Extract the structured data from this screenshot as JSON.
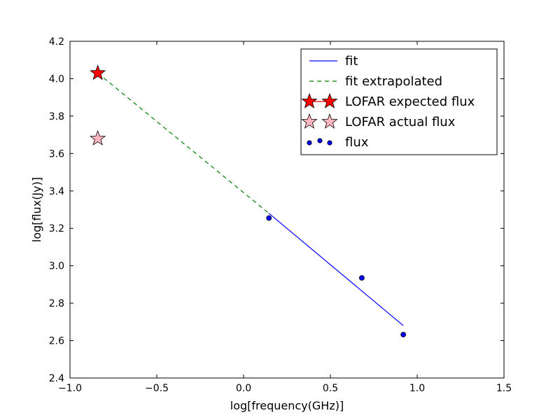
{
  "chart_data": {
    "type": "line",
    "xlabel": "log[frequency(GHz)]",
    "ylabel": "log[flux(Jy)]",
    "xlim": [
      -1.0,
      1.5
    ],
    "ylim": [
      2.4,
      4.2
    ],
    "xticks": [
      "−1.0",
      "−0.5",
      "0.0",
      "0.5",
      "1.0",
      "1.5"
    ],
    "yticks": [
      "2.4",
      "2.6",
      "2.8",
      "3.0",
      "3.2",
      "3.4",
      "3.6",
      "3.8",
      "4.0",
      "4.2"
    ],
    "grid": false,
    "legend_position": "top-right",
    "series": [
      {
        "name": "fit",
        "kind": "line",
        "style": "solid",
        "color": "#0000ff",
        "x": [
          0.146,
          0.92
        ],
        "y": [
          3.28,
          2.68
        ]
      },
      {
        "name": "fit extrapolated",
        "kind": "line",
        "style": "dashed",
        "color": "#008000",
        "x": [
          -0.84,
          0.146
        ],
        "y": [
          4.03,
          3.28
        ]
      },
      {
        "name": "LOFAR expected flux",
        "kind": "marker",
        "marker": "star",
        "color": "#ff0000",
        "x": [
          -0.84
        ],
        "y": [
          4.03
        ]
      },
      {
        "name": "LOFAR actual flux",
        "kind": "marker",
        "marker": "star",
        "color": "#ffb6c1",
        "x": [
          -0.84
        ],
        "y": [
          3.68
        ]
      },
      {
        "name": "flux",
        "kind": "scatter",
        "marker": "circle",
        "color": "#0000ff",
        "x": [
          0.146,
          0.681,
          0.92
        ],
        "y": [
          3.255,
          2.935,
          2.632
        ]
      }
    ]
  }
}
